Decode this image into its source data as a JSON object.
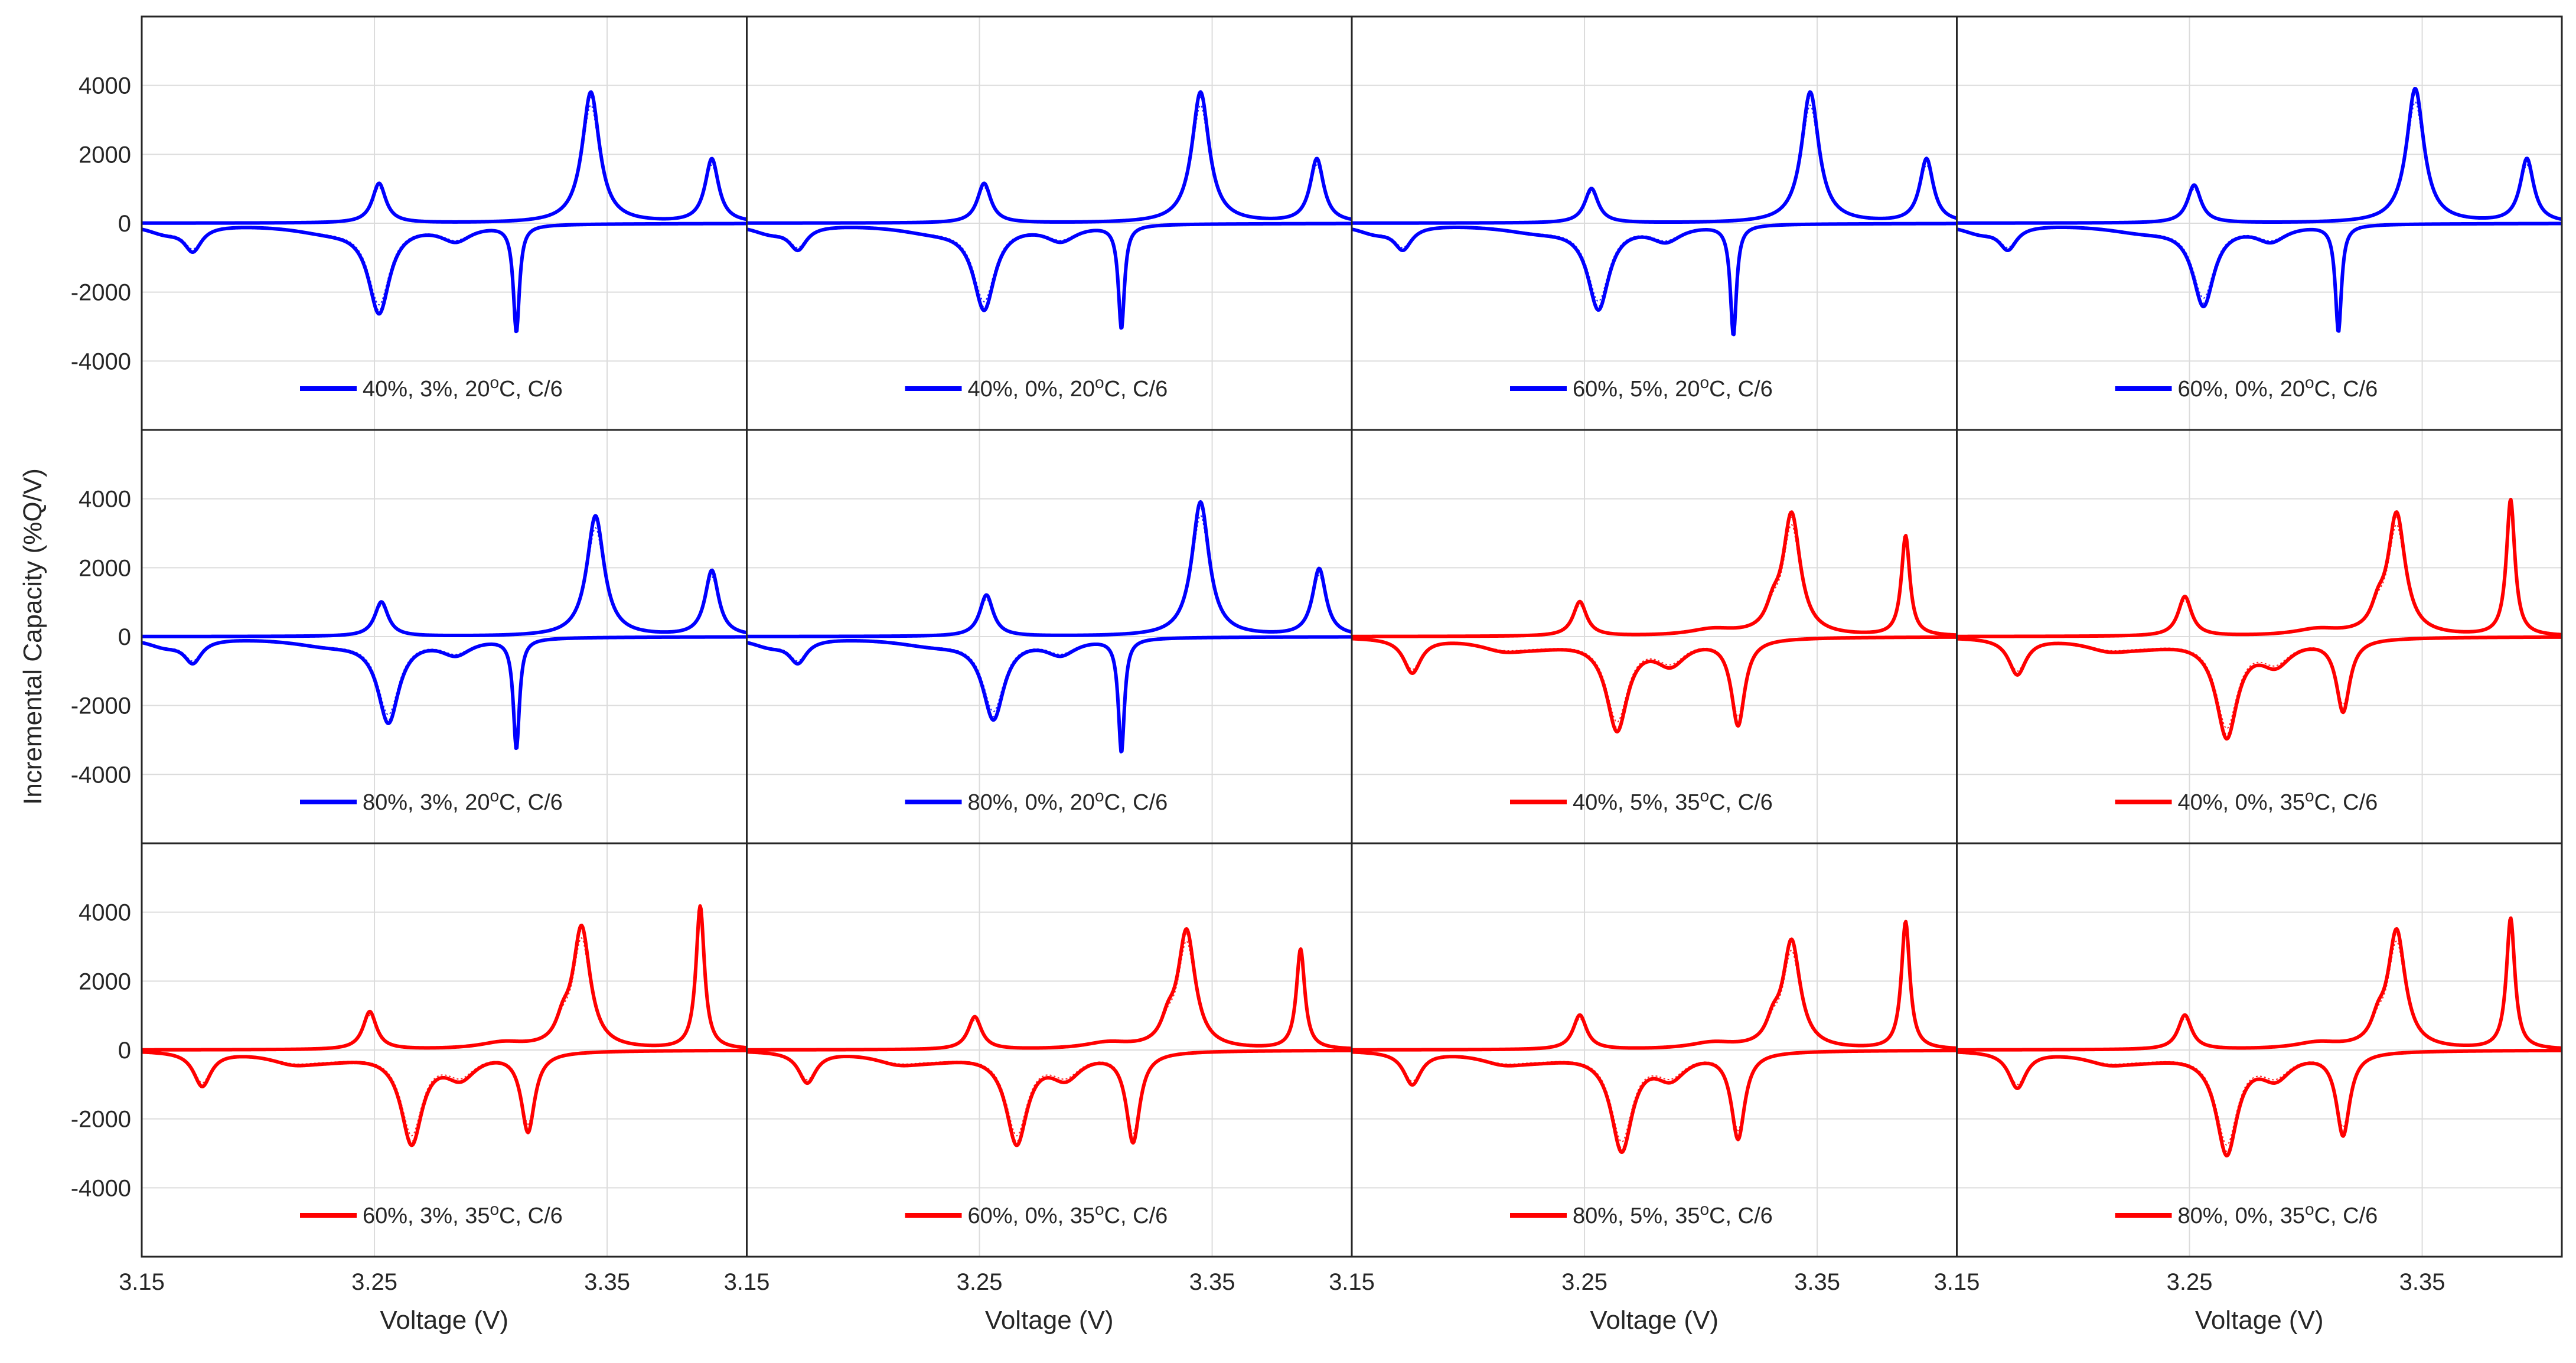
{
  "chart_data": {
    "type": "line",
    "layout": "3x4 grid of small multiples",
    "xlabel": "Voltage (V)",
    "ylabel": "Incremental Capacity (%Q/V)",
    "xlim": [
      3.15,
      3.41
    ],
    "ylim": [
      -6000,
      6000
    ],
    "xticks": [
      3.15,
      3.25,
      3.35
    ],
    "xtick_labels": [
      "3.15",
      "3.25",
      "3.35"
    ],
    "yticks": [
      4000,
      2000,
      0,
      -2000,
      -4000
    ],
    "ytick_labels": [
      "4000",
      "2000",
      "0",
      "-2000",
      "-4000"
    ],
    "grid": true,
    "legend_placement": "bottom-center of each panel",
    "colors": {
      "20C": "#0000ff",
      "35C": "#ff0000"
    },
    "panels": [
      {
        "legend": "40%, 3%, 20",
        "temp_sup": "o",
        "legend_tail": "C, C/6",
        "color": "#0000ff",
        "profile": "A",
        "charge_peaks": [
          [
            3.252,
            1150
          ],
          [
            3.343,
            3800
          ],
          [
            3.395,
            1850
          ]
        ],
        "discharge_peaks": [
          [
            3.172,
            -700
          ],
          [
            3.252,
            -2500
          ],
          [
            3.311,
            -3100
          ]
        ]
      },
      {
        "legend": "40%, 0%, 20",
        "temp_sup": "o",
        "legend_tail": "C, C/6",
        "color": "#0000ff",
        "profile": "A",
        "charge_peaks": [
          [
            3.252,
            1150
          ],
          [
            3.345,
            3800
          ],
          [
            3.395,
            1850
          ]
        ],
        "discharge_peaks": [
          [
            3.172,
            -650
          ],
          [
            3.252,
            -2400
          ],
          [
            3.311,
            -3000
          ]
        ]
      },
      {
        "legend": "60%, 5%, 20",
        "temp_sup": "o",
        "legend_tail": "C, C/6",
        "color": "#0000ff",
        "profile": "A",
        "charge_peaks": [
          [
            3.253,
            1000
          ],
          [
            3.347,
            3800
          ],
          [
            3.397,
            1850
          ]
        ],
        "discharge_peaks": [
          [
            3.172,
            -650
          ],
          [
            3.256,
            -2400
          ],
          [
            3.314,
            -3200
          ]
        ]
      },
      {
        "legend": "60%, 0%, 20",
        "temp_sup": "o",
        "legend_tail": "C, C/6",
        "color": "#0000ff",
        "profile": "A",
        "charge_peaks": [
          [
            3.252,
            1100
          ],
          [
            3.347,
            3900
          ],
          [
            3.395,
            1850
          ]
        ],
        "discharge_peaks": [
          [
            3.172,
            -650
          ],
          [
            3.256,
            -2300
          ],
          [
            3.314,
            -3100
          ]
        ]
      },
      {
        "legend": "80%, 3%, 20",
        "temp_sup": "o",
        "legend_tail": "C, C/6",
        "color": "#0000ff",
        "profile": "A",
        "charge_peaks": [
          [
            3.253,
            1000
          ],
          [
            3.345,
            3500
          ],
          [
            3.395,
            1900
          ]
        ],
        "discharge_peaks": [
          [
            3.172,
            -650
          ],
          [
            3.256,
            -2400
          ],
          [
            3.311,
            -3200
          ]
        ]
      },
      {
        "legend": "80%, 0%, 20",
        "temp_sup": "o",
        "legend_tail": "C, C/6",
        "color": "#0000ff",
        "profile": "A",
        "charge_peaks": [
          [
            3.253,
            1200
          ],
          [
            3.345,
            3900
          ],
          [
            3.396,
            1950
          ]
        ],
        "discharge_peaks": [
          [
            3.172,
            -650
          ],
          [
            3.256,
            -2300
          ],
          [
            3.311,
            -3300
          ]
        ]
      },
      {
        "legend": "40%, 5%, 35",
        "temp_sup": "o",
        "legend_tail": "C, C/6",
        "color": "#ff0000",
        "profile": "B",
        "charge_peaks": [
          [
            3.248,
            1000
          ],
          [
            3.339,
            3500
          ],
          [
            3.388,
            2900
          ]
        ],
        "discharge_peaks": [
          [
            3.176,
            -1000
          ],
          [
            3.264,
            -2600
          ],
          [
            3.316,
            -2500
          ]
        ]
      },
      {
        "legend": "40%, 0%, 35",
        "temp_sup": "o",
        "legend_tail": "C, C/6",
        "color": "#ff0000",
        "profile": "B",
        "charge_peaks": [
          [
            3.248,
            1150
          ],
          [
            3.339,
            3500
          ],
          [
            3.388,
            3950
          ]
        ],
        "discharge_peaks": [
          [
            3.176,
            -1050
          ],
          [
            3.266,
            -2800
          ],
          [
            3.316,
            -2100
          ]
        ]
      },
      {
        "legend": "60%, 3%, 35",
        "temp_sup": "o",
        "legend_tail": "C, C/6",
        "color": "#ff0000",
        "profile": "B",
        "charge_peaks": [
          [
            3.248,
            1100
          ],
          [
            3.339,
            3500
          ],
          [
            3.39,
            4150
          ]
        ],
        "discharge_peaks": [
          [
            3.176,
            -1000
          ],
          [
            3.266,
            -2600
          ],
          [
            3.316,
            -2300
          ]
        ]
      },
      {
        "legend": "60%, 0%, 35",
        "temp_sup": "o",
        "legend_tail": "C, C/6",
        "color": "#ff0000",
        "profile": "B",
        "charge_peaks": [
          [
            3.248,
            950
          ],
          [
            3.339,
            3400
          ],
          [
            3.388,
            2900
          ]
        ],
        "discharge_peaks": [
          [
            3.176,
            -900
          ],
          [
            3.266,
            -2600
          ],
          [
            3.316,
            -2600
          ]
        ]
      },
      {
        "legend": "80%, 5%, 35",
        "temp_sup": "o",
        "legend_tail": "C, C/6",
        "color": "#ff0000",
        "profile": "B",
        "charge_peaks": [
          [
            3.248,
            1000
          ],
          [
            3.339,
            3100
          ],
          [
            3.388,
            3700
          ]
        ],
        "discharge_peaks": [
          [
            3.176,
            -950
          ],
          [
            3.266,
            -2800
          ],
          [
            3.316,
            -2500
          ]
        ]
      },
      {
        "legend": "80%, 0%, 35",
        "temp_sup": "o",
        "legend_tail": "C, C/6",
        "color": "#ff0000",
        "profile": "B",
        "charge_peaks": [
          [
            3.248,
            1000
          ],
          [
            3.339,
            3400
          ],
          [
            3.388,
            3800
          ]
        ],
        "discharge_peaks": [
          [
            3.176,
            -1050
          ],
          [
            3.266,
            -2900
          ],
          [
            3.316,
            -2400
          ]
        ]
      }
    ]
  }
}
